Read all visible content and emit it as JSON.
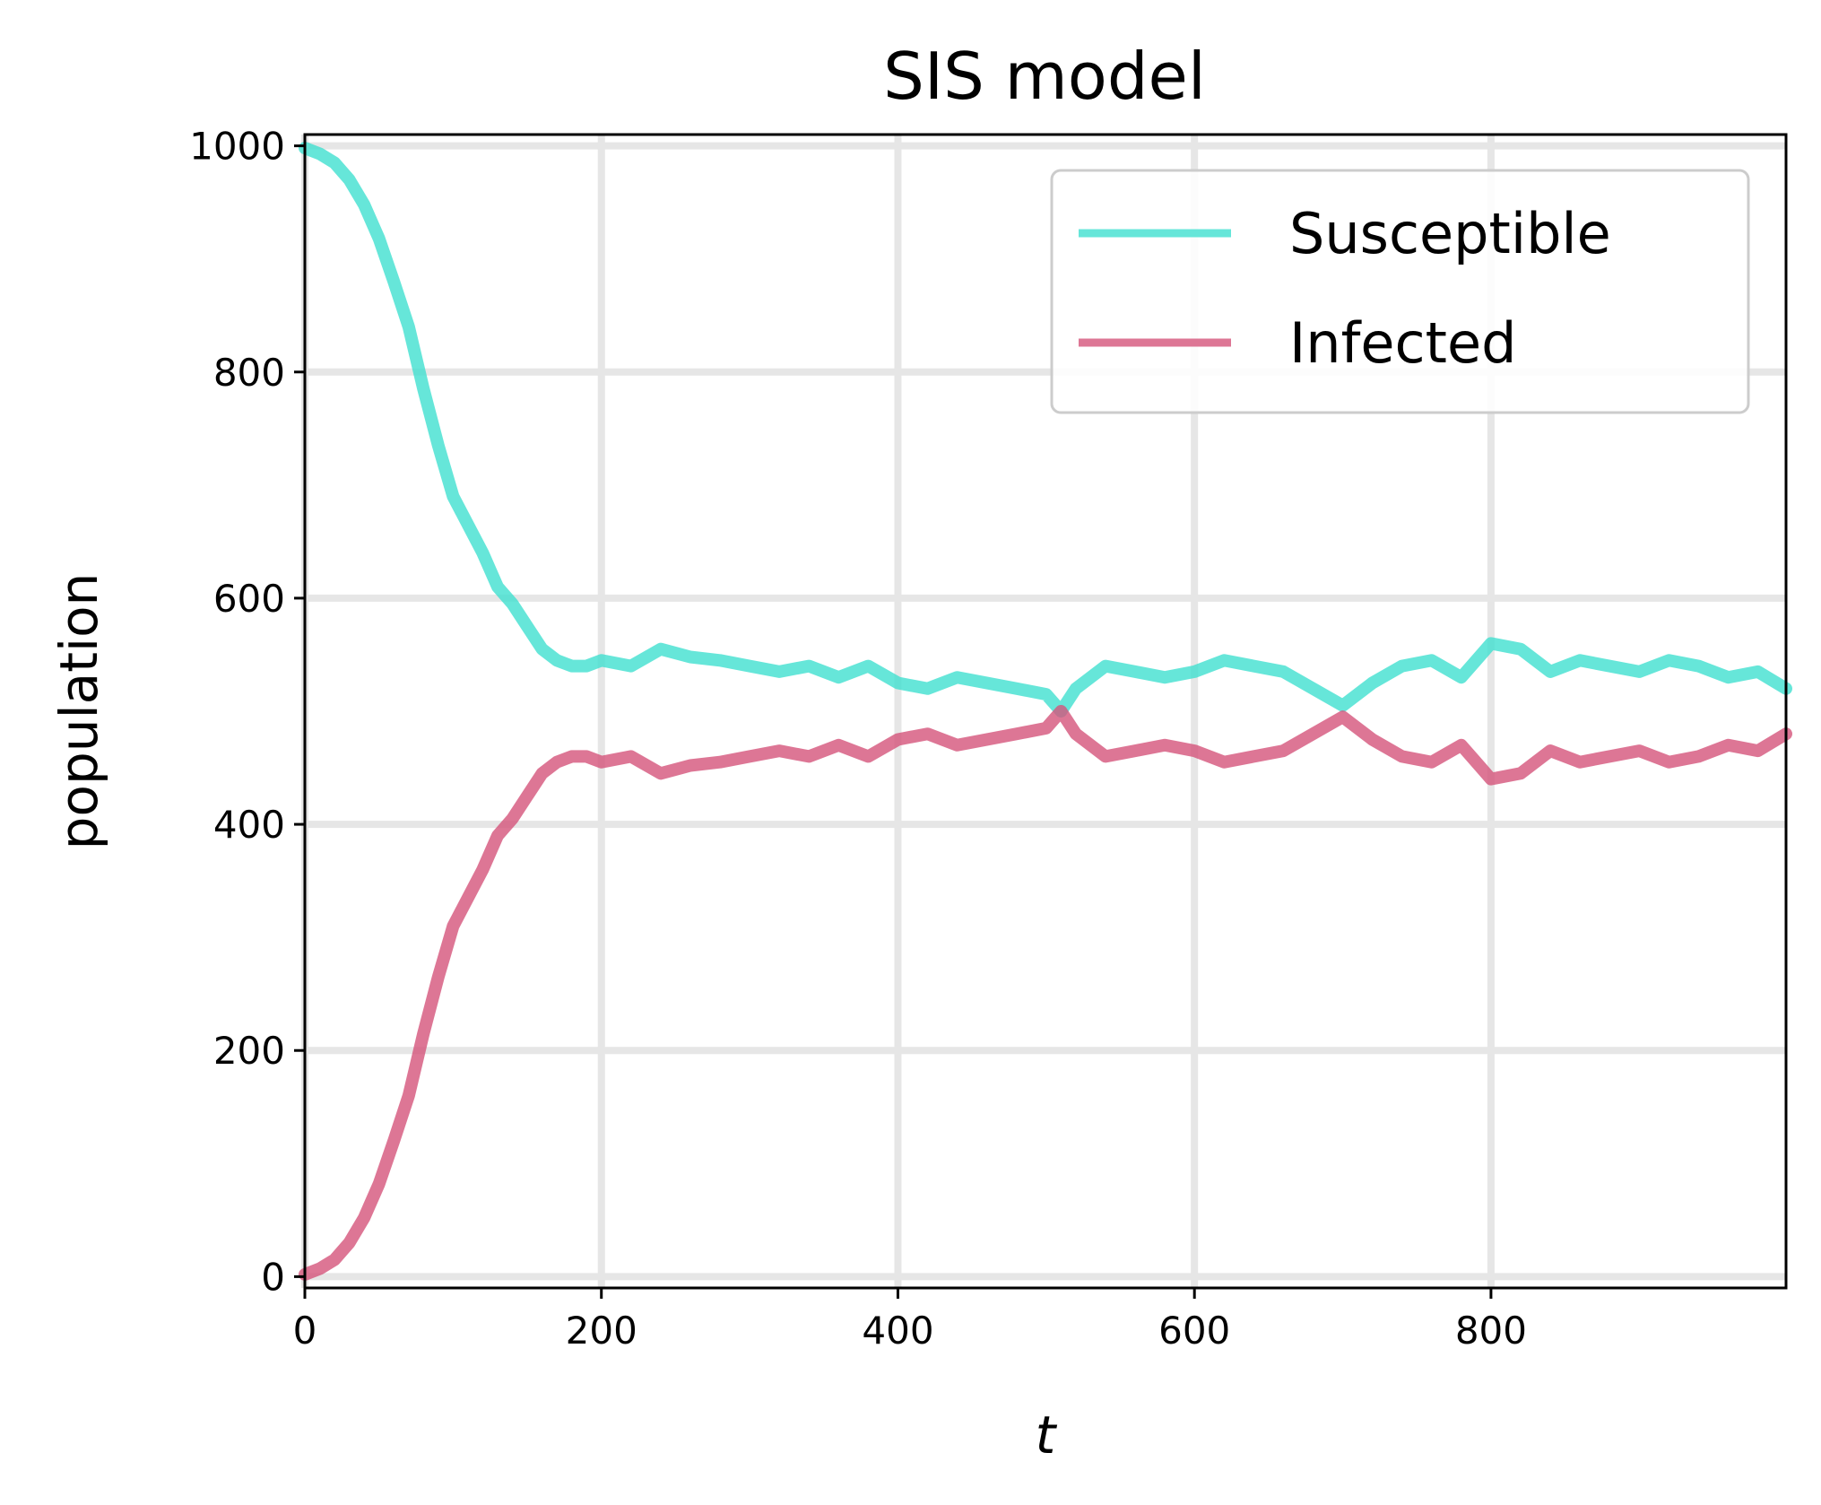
{
  "chart_data": {
    "type": "line",
    "title": "SIS model",
    "xlabel": "t",
    "ylabel": "population",
    "xlim": [
      0,
      999
    ],
    "ylim": [
      -10,
      1010
    ],
    "x_ticks": [
      0,
      200,
      400,
      600,
      800
    ],
    "y_ticks": [
      0,
      200,
      400,
      600,
      800,
      1000
    ],
    "grid": true,
    "legend_position": "top-right",
    "series": [
      {
        "name": "Susceptible",
        "color": "#40E0D0",
        "x": [
          0,
          10,
          20,
          30,
          40,
          50,
          60,
          70,
          80,
          90,
          100,
          110,
          120,
          130,
          140,
          150,
          160,
          170,
          180,
          190,
          200,
          220,
          240,
          260,
          280,
          300,
          320,
          340,
          360,
          380,
          400,
          420,
          440,
          460,
          480,
          500,
          510,
          520,
          540,
          560,
          580,
          600,
          620,
          640,
          660,
          680,
          700,
          720,
          740,
          760,
          780,
          800,
          820,
          840,
          860,
          880,
          900,
          920,
          940,
          960,
          980,
          999
        ],
        "y": [
          998,
          993,
          985,
          970,
          948,
          918,
          880,
          840,
          785,
          735,
          690,
          665,
          640,
          610,
          595,
          575,
          555,
          545,
          540,
          540,
          545,
          540,
          555,
          548,
          545,
          540,
          535,
          540,
          530,
          540,
          525,
          520,
          530,
          525,
          520,
          515,
          500,
          520,
          540,
          535,
          530,
          535,
          545,
          540,
          535,
          520,
          505,
          525,
          540,
          545,
          530,
          560,
          555,
          535,
          545,
          540,
          535,
          545,
          540,
          530,
          535,
          520
        ]
      },
      {
        "name": "Infected",
        "color": "#D4547A",
        "x": [
          0,
          10,
          20,
          30,
          40,
          50,
          60,
          70,
          80,
          90,
          100,
          110,
          120,
          130,
          140,
          150,
          160,
          170,
          180,
          190,
          200,
          220,
          240,
          260,
          280,
          300,
          320,
          340,
          360,
          380,
          400,
          420,
          440,
          460,
          480,
          500,
          510,
          520,
          540,
          560,
          580,
          600,
          620,
          640,
          660,
          680,
          700,
          720,
          740,
          760,
          780,
          800,
          820,
          840,
          860,
          880,
          900,
          920,
          940,
          960,
          980,
          999
        ],
        "y": [
          2,
          7,
          15,
          30,
          52,
          82,
          120,
          160,
          215,
          265,
          310,
          335,
          360,
          390,
          405,
          425,
          445,
          455,
          460,
          460,
          455,
          460,
          445,
          452,
          455,
          460,
          465,
          460,
          470,
          460,
          475,
          480,
          470,
          475,
          480,
          485,
          500,
          480,
          460,
          465,
          470,
          465,
          455,
          460,
          465,
          480,
          495,
          475,
          460,
          455,
          470,
          440,
          445,
          465,
          455,
          460,
          465,
          455,
          460,
          470,
          465,
          480
        ]
      }
    ]
  }
}
